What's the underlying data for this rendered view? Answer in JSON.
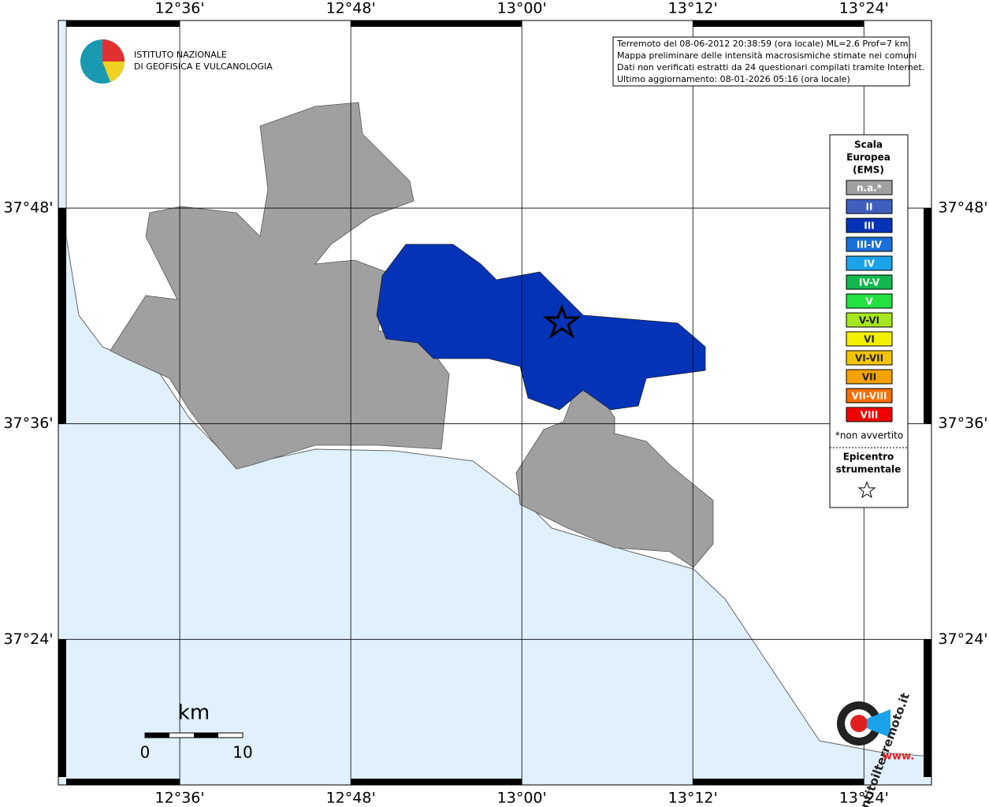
{
  "map": {
    "xlim": [
      12.458,
      13.479
    ],
    "ylim": [
      37.265,
      37.974
    ],
    "xticks": [
      {
        "value": 12.6,
        "label": "12°36'"
      },
      {
        "value": 12.8,
        "label": "12°48'"
      },
      {
        "value": 13.0,
        "label": "13°00'"
      },
      {
        "value": 13.2,
        "label": "13°12'"
      },
      {
        "value": 13.4,
        "label": "13°24'"
      }
    ],
    "yticks": [
      {
        "value": 37.8,
        "label": "37°48'"
      },
      {
        "value": 37.6,
        "label": "37°36'"
      },
      {
        "value": 37.4,
        "label": "37°24'"
      }
    ],
    "info": [
      "Terremoto del 08-06-2012 20:38:59 (ora locale) ML=2.6 Prof=7 km",
      "Mappa preliminare delle intensità macrosismiche stimate nei comuni",
      "Dati non verificati estratti da 24 questionari compilati tramite Internet.",
      "Ultimo aggiornamento: 08-01-2026 05:16 (ora locale)"
    ],
    "logo": [
      "ISTITUTO NAZIONALE",
      "DI GEOFISICA E VULCANOLOGIA"
    ],
    "legend": {
      "title": [
        "Scala",
        "Europea",
        "(EMS)"
      ],
      "items": [
        {
          "label": "n.a.*",
          "color": "#a0a0a0"
        },
        {
          "label": "II",
          "color": "#3f5fbf"
        },
        {
          "label": "III",
          "color": "#0433b8"
        },
        {
          "label": "III-IV",
          "color": "#1a6fd8"
        },
        {
          "label": "IV",
          "color": "#1aa3ea"
        },
        {
          "label": "IV-V",
          "color": "#12b84e"
        },
        {
          "label": "V",
          "color": "#22e040"
        },
        {
          "label": "V-VI",
          "color": "#a6e61e"
        },
        {
          "label": "VI",
          "color": "#f2f000"
        },
        {
          "label": "VI-VII",
          "color": "#f4c400"
        },
        {
          "label": "VII",
          "color": "#f4a200"
        },
        {
          "label": "VII-VIII",
          "color": "#f46e00"
        },
        {
          "label": "VIII",
          "color": "#f00000"
        }
      ],
      "note": "*non avvertito",
      "epicenter": [
        "Epicentro",
        "strumentale"
      ]
    },
    "scale": {
      "unit": "km",
      "ticks": [
        0,
        10
      ]
    },
    "site": {
      "name": "haisentitoilterremoto.it",
      "www": "www."
    }
  }
}
